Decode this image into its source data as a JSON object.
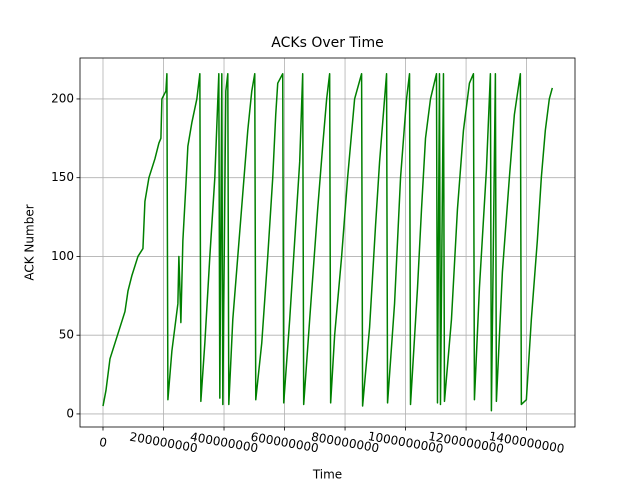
{
  "chart_data": {
    "type": "line",
    "title": "ACKs Over Time",
    "x_label": "Time",
    "y_label": "ACK Number",
    "color": "#008000",
    "grid": true,
    "x": [
      0,
      9900000,
      23100000,
      39600000,
      56100000,
      72600000,
      82500000,
      95700000,
      115500000,
      132000000,
      138600000,
      151800000,
      171600000,
      184800000,
      191400000,
      194700000,
      207900000,
      211200000,
      214500000,
      227700000,
      237600000,
      247500000,
      250800000,
      254100000,
      257400000,
      264000000,
      273900000,
      280500000,
      293700000,
      310200000,
      320100000,
      323400000,
      336600000,
      353100000,
      369600000,
      382800000,
      386100000,
      392700000,
      396000000,
      405900000,
      412500000,
      415800000,
      429000000,
      445500000,
      462000000,
      478500000,
      491700000,
      501600000,
      504900000,
      524700000,
      544500000,
      561000000,
      570900000,
      577500000,
      594000000,
      597300000,
      617100000,
      636900000,
      650100000,
      660000000,
      663300000,
      683100000,
      709500000,
      726000000,
      739200000,
      749100000,
      752400000,
      765600000,
      788700000,
      808500000,
      831600000,
      854700000,
      858000000,
      881100000,
      900900000,
      914100000,
      930600000,
      937200000,
      940500000,
      963600000,
      983400000,
      1003200000,
      1013100000,
      1016400000,
      1039500000,
      1052700000,
      1065900000,
      1082400000,
      1102200000,
      1105500000,
      1112100000,
      1115400000,
      1125300000,
      1128600000,
      1151700000,
      1171500000,
      1191300000,
      1211100000,
      1224300000,
      1227600000,
      1244100000,
      1267200000,
      1280400000,
      1283700000,
      1296900000,
      1300200000,
      1320000000,
      1343100000,
      1359600000,
      1379400000,
      1382700000,
      1399200000,
      1415700000,
      1435500000,
      1448700000,
      1461900000,
      1475100000,
      1485000000
    ],
    "values": [
      5,
      15,
      35,
      45,
      55,
      65,
      78,
      88,
      100,
      105,
      135,
      150,
      162,
      172,
      175,
      200,
      205,
      216,
      9,
      40,
      55,
      70,
      100,
      80,
      58,
      110,
      145,
      170,
      185,
      200,
      216,
      8,
      45,
      100,
      150,
      216,
      10,
      216,
      6,
      205,
      216,
      6,
      60,
      100,
      140,
      180,
      205,
      216,
      9,
      45,
      100,
      150,
      190,
      210,
      216,
      7,
      60,
      120,
      160,
      216,
      6,
      60,
      130,
      170,
      200,
      216,
      7,
      50,
      100,
      150,
      200,
      216,
      5,
      55,
      120,
      160,
      200,
      216,
      7,
      70,
      150,
      200,
      216,
      6,
      80,
      130,
      175,
      200,
      216,
      7,
      216,
      6,
      216,
      8,
      60,
      130,
      180,
      210,
      216,
      9,
      80,
      155,
      216,
      2,
      216,
      8,
      90,
      150,
      190,
      216,
      6,
      9,
      60,
      110,
      150,
      180,
      200,
      207
    ],
    "xlim": [
      -76000000,
      1560000000
    ],
    "ylim": [
      -8.3,
      226
    ],
    "xticks": [
      0,
      200000000,
      400000000,
      600000000,
      800000000,
      1000000000,
      1200000000,
      1400000000
    ],
    "yticks": [
      0,
      50,
      100,
      150,
      200
    ]
  }
}
